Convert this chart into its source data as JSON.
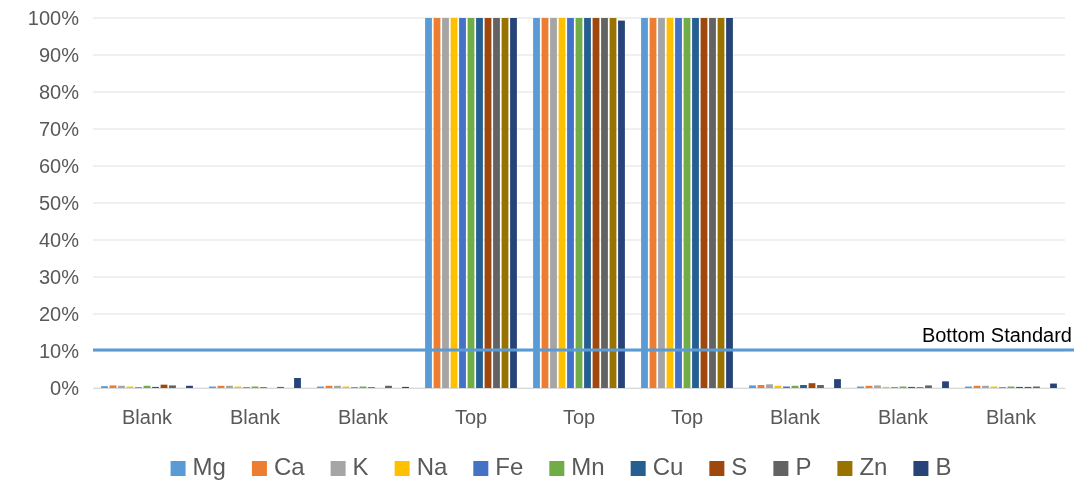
{
  "chart_data": {
    "type": "bar",
    "categories": [
      "Blank",
      "Blank",
      "Blank",
      "Top",
      "Top",
      "Top",
      "Blank",
      "Blank",
      "Blank"
    ],
    "series": [
      {
        "name": "Mg",
        "color": "#5b9bd5",
        "values": [
          0.5,
          0.4,
          0.4,
          100,
          100,
          100,
          0.7,
          0.4,
          0.4
        ]
      },
      {
        "name": "Ca",
        "color": "#ed7d31",
        "values": [
          0.7,
          0.6,
          0.6,
          100,
          100,
          100,
          0.8,
          0.6,
          0.6
        ]
      },
      {
        "name": "K",
        "color": "#a5a5a5",
        "values": [
          0.6,
          0.6,
          0.6,
          100,
          100,
          100,
          1.0,
          0.7,
          0.6
        ]
      },
      {
        "name": "Na",
        "color": "#ffc000",
        "values": [
          0.4,
          0.4,
          0.4,
          100,
          100,
          100,
          0.6,
          0.3,
          0.4
        ]
      },
      {
        "name": "Fe",
        "color": "#4472c4",
        "values": [
          0.2,
          0.2,
          0.2,
          100,
          100,
          100,
          0.4,
          0.2,
          0.2
        ]
      },
      {
        "name": "Mn",
        "color": "#70ad47",
        "values": [
          0.6,
          0.4,
          0.4,
          100,
          100,
          100,
          0.6,
          0.4,
          0.4
        ]
      },
      {
        "name": "Cu",
        "color": "#255e91",
        "values": [
          0.3,
          0.2,
          0.2,
          100,
          100,
          100,
          0.8,
          0.3,
          0.3
        ]
      },
      {
        "name": "S",
        "color": "#9e480e",
        "values": [
          0.9,
          0,
          0,
          100,
          100,
          100,
          1.3,
          0.2,
          0.3
        ]
      },
      {
        "name": "P",
        "color": "#636363",
        "values": [
          0.7,
          0.3,
          0.6,
          100,
          100,
          100,
          0.8,
          0.7,
          0.4
        ]
      },
      {
        "name": "Zn",
        "color": "#997300",
        "values": [
          0,
          0,
          0,
          100,
          100,
          100,
          0,
          0,
          0
        ]
      },
      {
        "name": "B",
        "color": "#264478",
        "values": [
          0.6,
          2.7,
          0.3,
          100,
          99.3,
          100,
          2.4,
          1.8,
          1.2
        ]
      }
    ],
    "ylim": [
      0,
      100
    ],
    "yticks": [
      {
        "value": 0,
        "label": "0%"
      },
      {
        "value": 10,
        "label": "10%"
      },
      {
        "value": 20,
        "label": "20%"
      },
      {
        "value": 30,
        "label": "30%"
      },
      {
        "value": 40,
        "label": "40%"
      },
      {
        "value": 50,
        "label": "50%"
      },
      {
        "value": 60,
        "label": "60%"
      },
      {
        "value": 70,
        "label": "70%"
      },
      {
        "value": 80,
        "label": "80%"
      },
      {
        "value": 90,
        "label": "90%"
      },
      {
        "value": 100,
        "label": "100%"
      }
    ],
    "grid": "y",
    "legend": "bottom",
    "ref_lines": [
      {
        "axis": "y",
        "value": 10.3,
        "label": "Bottom Standard",
        "color": "#5b9bd5"
      }
    ]
  }
}
